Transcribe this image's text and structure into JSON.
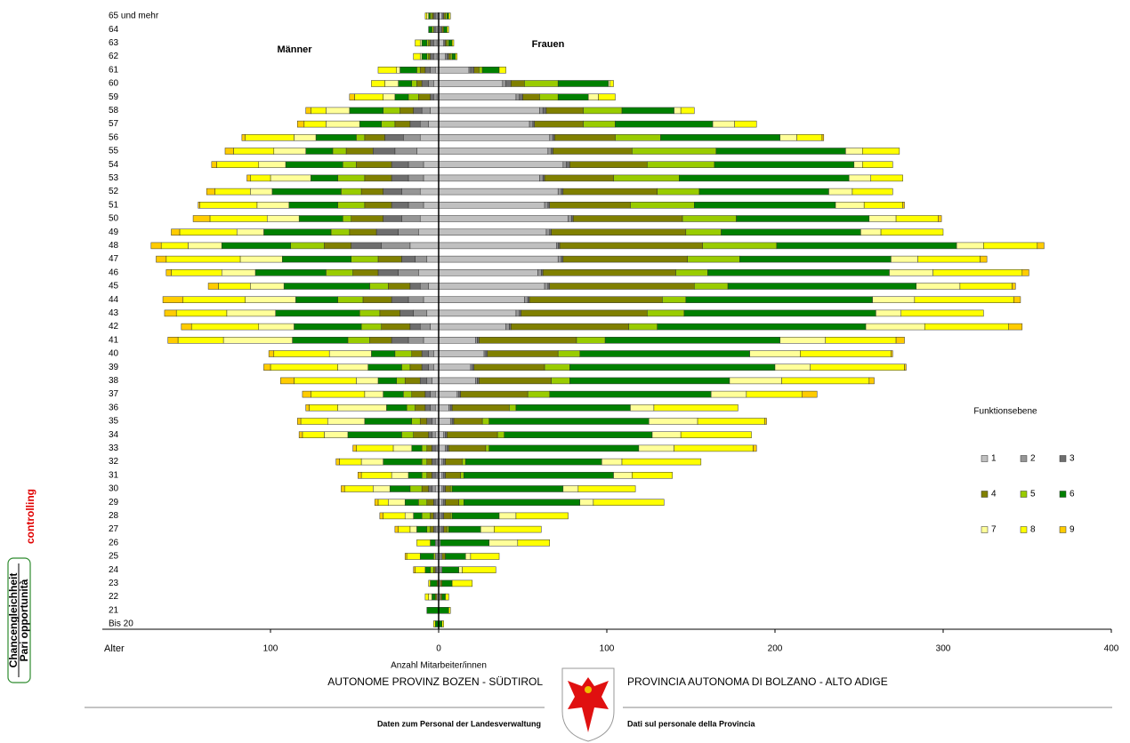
{
  "chart_data": {
    "type": "pyramid",
    "left_label": "Männer",
    "right_label": "Frauen",
    "x_label": "Anzahl Mitarbeiter/innen",
    "y_label": "Alter",
    "legend_title": "Funktionsebene",
    "categories": [
      "65 und mehr",
      "64",
      "63",
      "62",
      "61",
      "60",
      "59",
      "58",
      "57",
      "56",
      "55",
      "54",
      "53",
      "52",
      "51",
      "50",
      "49",
      "48",
      "47",
      "46",
      "45",
      "44",
      "43",
      "42",
      "41",
      "40",
      "39",
      "38",
      "37",
      "36",
      "35",
      "34",
      "33",
      "32",
      "31",
      "30",
      "29",
      "28",
      "27",
      "26",
      "25",
      "24",
      "23",
      "22",
      "21",
      "Bis 20"
    ],
    "xlim": [
      -200,
      400
    ],
    "xticks": [
      {
        "value": -100,
        "label": "100"
      },
      0,
      100,
      200,
      300,
      400
    ],
    "series": [
      {
        "name": "1",
        "color": "#c0c0c0",
        "men": [
          1,
          1,
          1,
          1,
          2,
          3,
          1,
          5,
          6,
          11,
          13,
          9,
          9,
          11,
          9,
          11,
          12,
          17,
          7,
          12,
          6,
          9,
          7,
          5,
          9,
          3,
          3,
          4,
          2,
          2,
          2,
          2,
          1,
          1,
          1,
          2,
          1,
          1,
          1,
          1,
          1,
          1,
          0,
          1,
          0,
          0
        ],
        "women": [
          2,
          1,
          3,
          4,
          18,
          38,
          46,
          60,
          54,
          66,
          65,
          74,
          60,
          71,
          63,
          77,
          64,
          70,
          71,
          59,
          63,
          51,
          46,
          40,
          22,
          27,
          19,
          22,
          11,
          6,
          7,
          3,
          4,
          2,
          2,
          2,
          2,
          1,
          1,
          1,
          1,
          1,
          1,
          1,
          0,
          0
        ]
      },
      {
        "name": "2",
        "color": "#969696",
        "men": [
          1,
          1,
          2,
          2,
          3,
          3,
          2,
          5,
          5,
          10,
          13,
          9,
          9,
          11,
          9,
          11,
          12,
          17,
          7,
          12,
          5,
          9,
          8,
          6,
          9,
          3,
          3,
          3,
          3,
          3,
          2,
          2,
          1,
          1,
          1,
          2,
          1,
          1,
          1,
          1,
          1,
          0,
          0,
          0,
          0,
          0
        ],
        "women": [
          0,
          0,
          0,
          1,
          1,
          2,
          2,
          2,
          2,
          2,
          2,
          2,
          2,
          2,
          2,
          2,
          2,
          1,
          2,
          2,
          2,
          2,
          2,
          2,
          1,
          1,
          1,
          1,
          1,
          1,
          1,
          1,
          1,
          1,
          1,
          1,
          1,
          1,
          1,
          0,
          1,
          1,
          0,
          0,
          0,
          0
        ]
      },
      {
        "name": "3",
        "color": "#6e6e6e",
        "men": [
          1,
          1,
          2,
          2,
          3,
          4,
          2,
          5,
          6,
          11,
          13,
          10,
          10,
          11,
          10,
          11,
          13,
          18,
          8,
          12,
          6,
          10,
          8,
          6,
          10,
          4,
          4,
          4,
          3,
          3,
          3,
          2,
          2,
          2,
          2,
          2,
          1,
          1,
          1,
          0,
          0,
          1,
          0,
          0,
          0,
          0
        ],
        "women": [
          1,
          1,
          1,
          1,
          2,
          3,
          2,
          2,
          1,
          1,
          1,
          2,
          1,
          1,
          1,
          1,
          1,
          1,
          1,
          1,
          1,
          1,
          1,
          1,
          1,
          1,
          1,
          1,
          1,
          1,
          1,
          1,
          1,
          1,
          1,
          1,
          1,
          1,
          1,
          0,
          0,
          0,
          0,
          0,
          0,
          0
        ]
      },
      {
        "name": "4",
        "color": "#808000",
        "men": [
          1,
          0,
          1,
          1,
          3,
          3,
          7,
          8,
          9,
          12,
          16,
          21,
          16,
          13,
          16,
          19,
          16,
          16,
          14,
          15,
          13,
          17,
          12,
          17,
          13,
          6,
          7,
          9,
          8,
          6,
          4,
          9,
          3,
          3,
          3,
          4,
          4,
          2,
          2,
          0,
          0,
          1,
          1,
          1,
          0,
          0
        ],
        "women": [
          1,
          1,
          1,
          1,
          3,
          8,
          10,
          22,
          29,
          36,
          47,
          46,
          41,
          56,
          48,
          65,
          80,
          85,
          74,
          79,
          86,
          79,
          75,
          70,
          58,
          42,
          42,
          43,
          40,
          34,
          17,
          30,
          22,
          10,
          9,
          3,
          8,
          4,
          2,
          0,
          2,
          0,
          1,
          1,
          0,
          0
        ]
      },
      {
        "name": "5",
        "color": "#99cc00",
        "men": [
          1,
          1,
          1,
          1,
          2,
          3,
          6,
          10,
          8,
          5,
          8,
          8,
          16,
          12,
          16,
          5,
          11,
          20,
          16,
          16,
          11,
          15,
          12,
          12,
          13,
          10,
          5,
          5,
          5,
          5,
          5,
          7,
          3,
          3,
          3,
          7,
          5,
          5,
          2,
          0,
          1,
          2,
          0,
          0,
          0,
          0
        ],
        "women": [
          1,
          0,
          1,
          1,
          2,
          20,
          11,
          23,
          19,
          27,
          50,
          40,
          39,
          25,
          38,
          32,
          21,
          44,
          31,
          19,
          20,
          14,
          22,
          17,
          17,
          13,
          15,
          11,
          13,
          4,
          4,
          4,
          2,
          2,
          2,
          1,
          3,
          1,
          1,
          0,
          0,
          0,
          0,
          0,
          0,
          0
        ]
      },
      {
        "name": "6",
        "color": "#008000",
        "men": [
          1,
          2,
          3,
          3,
          10,
          8,
          8,
          20,
          13,
          24,
          16,
          34,
          16,
          41,
          29,
          26,
          40,
          41,
          41,
          42,
          51,
          25,
          50,
          40,
          33,
          14,
          20,
          11,
          12,
          12,
          28,
          32,
          6,
          23,
          8,
          12,
          8,
          5,
          6,
          3,
          8,
          3,
          4,
          2,
          7,
          2
        ],
        "women": [
          1,
          2,
          2,
          2,
          10,
          30,
          18,
          31,
          58,
          71,
          77,
          83,
          101,
          77,
          84,
          79,
          83,
          107,
          90,
          108,
          112,
          111,
          114,
          124,
          104,
          101,
          122,
          95,
          96,
          68,
          95,
          88,
          89,
          81,
          89,
          66,
          69,
          28,
          19,
          29,
          12,
          10,
          6,
          2,
          6,
          2
        ]
      },
      {
        "name": "7",
        "color": "#ffff99",
        "men": [
          1,
          0,
          1,
          1,
          2,
          8,
          7,
          14,
          20,
          13,
          19,
          16,
          24,
          13,
          19,
          19,
          16,
          20,
          25,
          20,
          20,
          30,
          29,
          21,
          41,
          25,
          18,
          13,
          11,
          29,
          22,
          14,
          11,
          13,
          10,
          10,
          10,
          5,
          4,
          0,
          0,
          0,
          0,
          2,
          0,
          0
        ],
        "women": [
          0,
          0,
          0,
          0,
          0,
          1,
          6,
          4,
          13,
          10,
          10,
          5,
          13,
          14,
          17,
          16,
          12,
          16,
          16,
          26,
          26,
          25,
          15,
          35,
          27,
          30,
          21,
          31,
          21,
          14,
          29,
          17,
          21,
          12,
          11,
          9,
          8,
          10,
          8,
          17,
          3,
          2,
          0,
          0,
          0,
          0
        ]
      },
      {
        "name": "8",
        "color": "#ffff00",
        "men": [
          1,
          0,
          3,
          4,
          11,
          8,
          17,
          9,
          13,
          29,
          24,
          25,
          12,
          21,
          34,
          34,
          34,
          16,
          44,
          30,
          19,
          37,
          30,
          40,
          27,
          33,
          40,
          37,
          32,
          17,
          16,
          13,
          22,
          13,
          18,
          17,
          6,
          13,
          7,
          8,
          8,
          6,
          1,
          2,
          0,
          1
        ],
        "women": [
          1,
          1,
          1,
          1,
          4,
          2,
          10,
          8,
          13,
          15,
          22,
          18,
          19,
          24,
          23,
          25,
          37,
          32,
          37,
          53,
          31,
          59,
          49,
          50,
          42,
          54,
          56,
          52,
          33,
          50,
          40,
          42,
          47,
          47,
          24,
          34,
          42,
          31,
          28,
          19,
          17,
          20,
          12,
          2,
          1,
          1
        ]
      },
      {
        "name": "9",
        "color": "#ffcc00",
        "men": [
          0,
          0,
          0,
          0,
          0,
          0,
          3,
          3,
          4,
          2,
          5,
          3,
          2,
          5,
          1,
          10,
          5,
          6,
          6,
          3,
          6,
          12,
          7,
          6,
          6,
          3,
          4,
          8,
          5,
          2,
          2,
          2,
          2,
          2,
          2,
          2,
          2,
          2,
          2,
          0,
          1,
          1,
          0,
          0,
          0,
          0
        ],
        "women": [
          0,
          0,
          0,
          0,
          0,
          0,
          0,
          0,
          0,
          1,
          0,
          0,
          0,
          0,
          1,
          2,
          0,
          4,
          4,
          4,
          2,
          4,
          0,
          8,
          5,
          1,
          1,
          3,
          9,
          0,
          1,
          0,
          2,
          0,
          0,
          0,
          0,
          0,
          0,
          0,
          0,
          0,
          0,
          0,
          0,
          0
        ]
      }
    ]
  },
  "page": {
    "sidebar_top": "controlling",
    "sidebar_1": "Chancengleichheit",
    "sidebar_2": "Pari opportunità",
    "footer_left": "AUTONOME PROVINZ BOZEN - SÜDTIROL",
    "footer_right": "PROVINCIA AUTONOMA DI BOLZANO - ALTO ADIGE",
    "footer_left_sub": "Daten zum Personal der Landesverwaltung",
    "footer_right_sub": "Dati sul personale della Provincia"
  }
}
